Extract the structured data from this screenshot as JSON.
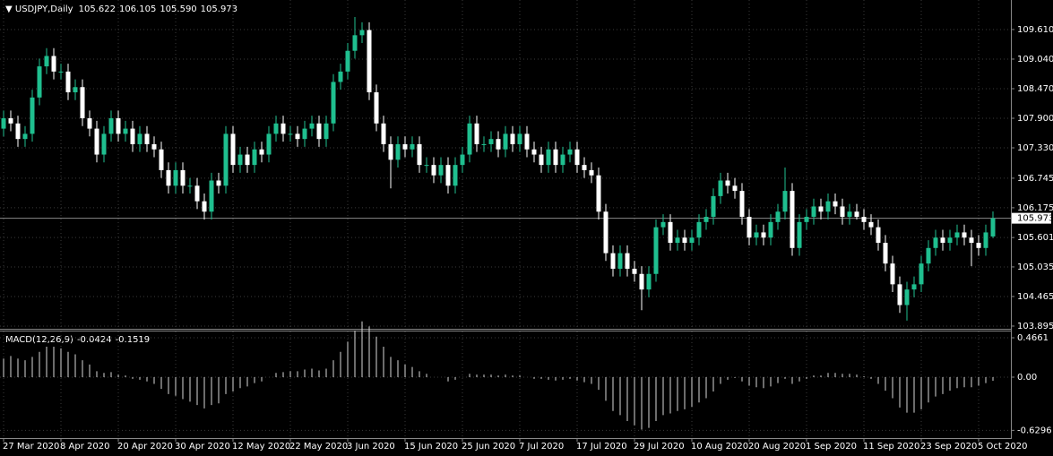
{
  "chart_data": {
    "type": "candlestick",
    "symbol": "USDJPY,Daily",
    "ohlc_labels": [
      "105.622",
      "106.105",
      "105.590",
      "105.973"
    ],
    "bull_color": "#1fbf8f",
    "bear_color": "#ffffff",
    "grid": true,
    "ylim": [
      103.86,
      110.11
    ],
    "yticks": [
      {
        "value": 109.61,
        "label": "109.610"
      },
      {
        "value": 109.04,
        "label": "109.040"
      },
      {
        "value": 108.47,
        "label": "108.470"
      },
      {
        "value": 107.9,
        "label": "107.900"
      },
      {
        "value": 107.33,
        "label": "107.330"
      },
      {
        "value": 106.745,
        "label": "106.745"
      },
      {
        "value": 106.175,
        "label": "106.175"
      },
      {
        "value": 105.601,
        "label": "105.601"
      },
      {
        "value": 105.035,
        "label": "105.035"
      },
      {
        "value": 104.465,
        "label": "104.465"
      },
      {
        "value": 103.895,
        "label": "103.895"
      }
    ],
    "categories": [
      "27 Mar 2020",
      null,
      null,
      null,
      null,
      null,
      null,
      null,
      "8 Apr 2020",
      null,
      null,
      null,
      null,
      null,
      null,
      null,
      "20 Apr 2020",
      null,
      null,
      null,
      null,
      null,
      null,
      null,
      "30 Apr 2020",
      null,
      null,
      null,
      null,
      null,
      null,
      null,
      "12 May 2020",
      null,
      null,
      null,
      null,
      null,
      null,
      null,
      "22 May 2020",
      null,
      null,
      null,
      null,
      null,
      null,
      null,
      "3 Jun 2020",
      null,
      null,
      null,
      null,
      null,
      null,
      null,
      "15 Jun 2020",
      null,
      null,
      null,
      null,
      null,
      null,
      null,
      "25 Jun 2020",
      null,
      null,
      null,
      null,
      null,
      null,
      null,
      "7 Jul 2020",
      null,
      null,
      null,
      null,
      null,
      null,
      null,
      "17 Jul 2020",
      null,
      null,
      null,
      null,
      null,
      null,
      null,
      "29 Jul 2020",
      null,
      null,
      null,
      null,
      null,
      null,
      null,
      "10 Aug 2020",
      null,
      null,
      null,
      null,
      null,
      null,
      null,
      "20 Aug 2020",
      null,
      null,
      null,
      null,
      null,
      null,
      null,
      "1 Sep 2020",
      null,
      null,
      null,
      null,
      null,
      null,
      null,
      "11 Sep 2020",
      null,
      null,
      null,
      null,
      null,
      null,
      null,
      "23 Sep 2020",
      null,
      null,
      null,
      null,
      null,
      null,
      null,
      "5 Oct 2020",
      null,
      null
    ],
    "ohlc": [
      [
        107.7,
        108.05,
        107.55,
        107.9
      ],
      [
        107.9,
        108.05,
        107.65,
        107.8
      ],
      [
        107.8,
        107.95,
        107.35,
        107.5
      ],
      [
        107.5,
        107.75,
        107.35,
        107.6
      ],
      [
        107.6,
        108.45,
        107.45,
        108.3
      ],
      [
        108.3,
        109.05,
        108.15,
        108.9
      ],
      [
        108.9,
        109.25,
        108.75,
        109.1
      ],
      [
        109.1,
        109.25,
        108.65,
        108.8
      ],
      [
        108.8,
        108.95,
        108.65,
        108.8
      ],
      [
        108.8,
        108.95,
        108.25,
        108.4
      ],
      [
        108.4,
        108.65,
        108.25,
        108.5
      ],
      [
        108.5,
        108.65,
        107.75,
        107.9
      ],
      [
        107.9,
        108.05,
        107.55,
        107.7
      ],
      [
        107.7,
        107.85,
        107.05,
        107.2
      ],
      [
        107.2,
        107.75,
        107.05,
        107.6
      ],
      [
        107.6,
        108.05,
        107.45,
        107.9
      ],
      [
        107.9,
        108.05,
        107.45,
        107.6
      ],
      [
        107.6,
        107.85,
        107.45,
        107.7
      ],
      [
        107.7,
        107.85,
        107.25,
        107.4
      ],
      [
        107.4,
        107.75,
        107.25,
        107.6
      ],
      [
        107.6,
        107.75,
        107.25,
        107.4
      ],
      [
        107.4,
        107.55,
        107.15,
        107.3
      ],
      [
        107.3,
        107.45,
        106.75,
        106.9
      ],
      [
        106.9,
        107.05,
        106.45,
        106.6
      ],
      [
        106.6,
        107.05,
        106.45,
        106.9
      ],
      [
        106.9,
        107.05,
        106.45,
        106.6
      ],
      [
        106.6,
        106.75,
        106.45,
        106.6
      ],
      [
        106.6,
        106.75,
        106.15,
        106.3
      ],
      [
        106.3,
        106.45,
        105.95,
        106.1
      ],
      [
        106.1,
        106.85,
        105.95,
        106.7
      ],
      [
        106.7,
        106.85,
        106.45,
        106.6
      ],
      [
        106.6,
        107.75,
        106.45,
        107.6
      ],
      [
        107.6,
        107.75,
        106.85,
        107.0
      ],
      [
        107.0,
        107.35,
        106.85,
        107.2
      ],
      [
        107.2,
        107.35,
        106.85,
        107.0
      ],
      [
        107.0,
        107.45,
        106.85,
        107.3
      ],
      [
        107.3,
        107.45,
        107.05,
        107.2
      ],
      [
        107.2,
        107.75,
        107.05,
        107.6
      ],
      [
        107.6,
        107.95,
        107.45,
        107.8
      ],
      [
        107.8,
        107.95,
        107.45,
        107.6
      ],
      [
        107.6,
        107.75,
        107.45,
        107.6
      ],
      [
        107.6,
        107.75,
        107.35,
        107.5
      ],
      [
        107.5,
        107.85,
        107.35,
        107.7
      ],
      [
        107.7,
        107.95,
        107.55,
        107.8
      ],
      [
        107.8,
        107.95,
        107.35,
        107.5
      ],
      [
        107.5,
        107.95,
        107.35,
        107.8
      ],
      [
        107.8,
        108.75,
        107.65,
        108.6
      ],
      [
        108.6,
        108.95,
        108.45,
        108.8
      ],
      [
        108.8,
        109.35,
        108.65,
        109.2
      ],
      [
        109.2,
        109.85,
        109.05,
        109.5
      ],
      [
        109.5,
        109.75,
        109.35,
        109.6
      ],
      [
        109.6,
        109.75,
        108.25,
        108.4
      ],
      [
        108.4,
        108.55,
        107.65,
        107.8
      ],
      [
        107.8,
        107.95,
        107.25,
        107.4
      ],
      [
        107.4,
        107.55,
        106.55,
        107.1
      ],
      [
        107.1,
        107.55,
        106.95,
        107.4
      ],
      [
        107.4,
        107.55,
        107.15,
        107.3
      ],
      [
        107.3,
        107.55,
        107.15,
        107.4
      ],
      [
        107.4,
        107.55,
        106.85,
        107.0
      ],
      [
        107.0,
        107.15,
        106.85,
        107.0
      ],
      [
        107.0,
        107.15,
        106.65,
        106.8
      ],
      [
        106.8,
        107.15,
        106.65,
        107.0
      ],
      [
        107.0,
        107.15,
        106.45,
        106.6
      ],
      [
        106.6,
        107.15,
        106.45,
        107.0
      ],
      [
        107.0,
        107.35,
        106.85,
        107.2
      ],
      [
        107.2,
        107.95,
        107.05,
        107.8
      ],
      [
        107.8,
        107.95,
        107.25,
        107.4
      ],
      [
        107.4,
        107.55,
        107.25,
        107.4
      ],
      [
        107.4,
        107.65,
        107.25,
        107.5
      ],
      [
        107.5,
        107.65,
        107.15,
        107.3
      ],
      [
        107.3,
        107.75,
        107.15,
        107.6
      ],
      [
        107.6,
        107.75,
        107.25,
        107.4
      ],
      [
        107.4,
        107.75,
        107.25,
        107.6
      ],
      [
        107.6,
        107.75,
        107.15,
        107.3
      ],
      [
        107.3,
        107.45,
        107.05,
        107.2
      ],
      [
        107.2,
        107.35,
        106.85,
        107.0
      ],
      [
        107.0,
        107.45,
        106.85,
        107.3
      ],
      [
        107.3,
        107.45,
        106.85,
        107.0
      ],
      [
        107.0,
        107.35,
        106.85,
        107.2
      ],
      [
        107.2,
        107.45,
        107.05,
        107.3
      ],
      [
        107.3,
        107.45,
        106.85,
        107.0
      ],
      [
        107.0,
        107.15,
        106.75,
        106.9
      ],
      [
        106.9,
        107.05,
        106.65,
        106.8
      ],
      [
        106.8,
        106.95,
        105.95,
        106.1
      ],
      [
        106.1,
        106.25,
        105.15,
        105.3
      ],
      [
        105.3,
        105.45,
        104.85,
        105.0
      ],
      [
        105.0,
        105.45,
        104.85,
        105.3
      ],
      [
        105.3,
        105.45,
        104.85,
        105.0
      ],
      [
        105.0,
        105.15,
        104.75,
        104.9
      ],
      [
        104.9,
        105.05,
        104.2,
        104.6
      ],
      [
        104.6,
        105.05,
        104.45,
        104.9
      ],
      [
        104.9,
        105.95,
        104.75,
        105.8
      ],
      [
        105.8,
        106.05,
        105.65,
        105.9
      ],
      [
        105.9,
        106.05,
        105.35,
        105.5
      ],
      [
        105.5,
        105.75,
        105.35,
        105.6
      ],
      [
        105.6,
        105.75,
        105.35,
        105.5
      ],
      [
        105.5,
        105.75,
        105.35,
        105.6
      ],
      [
        105.6,
        106.05,
        105.45,
        105.9
      ],
      [
        105.9,
        106.15,
        105.75,
        106.0
      ],
      [
        106.0,
        106.55,
        105.85,
        106.4
      ],
      [
        106.4,
        106.85,
        106.25,
        106.7
      ],
      [
        106.7,
        106.85,
        106.45,
        106.6
      ],
      [
        106.6,
        106.75,
        106.35,
        106.5
      ],
      [
        106.5,
        106.65,
        105.85,
        106.0
      ],
      [
        106.0,
        106.15,
        105.45,
        105.6
      ],
      [
        105.6,
        105.85,
        105.45,
        105.7
      ],
      [
        105.7,
        105.85,
        105.45,
        105.6
      ],
      [
        105.6,
        106.05,
        105.45,
        105.9
      ],
      [
        105.9,
        106.25,
        105.75,
        106.1
      ],
      [
        106.1,
        106.95,
        105.95,
        106.5
      ],
      [
        106.5,
        106.65,
        105.25,
        105.4
      ],
      [
        105.4,
        106.05,
        105.25,
        105.9
      ],
      [
        105.9,
        106.15,
        105.75,
        106.0
      ],
      [
        106.0,
        106.35,
        105.85,
        106.2
      ],
      [
        106.2,
        106.35,
        105.95,
        106.1
      ],
      [
        106.1,
        106.45,
        105.95,
        106.3
      ],
      [
        106.3,
        106.45,
        106.05,
        106.2
      ],
      [
        106.2,
        106.35,
        105.85,
        106.0
      ],
      [
        106.0,
        106.25,
        105.85,
        106.1
      ],
      [
        106.1,
        106.25,
        105.95,
        106.0
      ],
      [
        106.0,
        106.15,
        105.75,
        105.9
      ],
      [
        105.9,
        106.05,
        105.65,
        105.8
      ],
      [
        105.8,
        105.95,
        105.35,
        105.5
      ],
      [
        105.5,
        105.65,
        104.95,
        105.1
      ],
      [
        105.1,
        105.25,
        104.55,
        104.7
      ],
      [
        104.7,
        104.85,
        104.15,
        104.3
      ],
      [
        104.3,
        104.75,
        104.0,
        104.6
      ],
      [
        104.6,
        104.85,
        104.45,
        104.7
      ],
      [
        104.7,
        105.25,
        104.55,
        105.1
      ],
      [
        105.1,
        105.55,
        104.95,
        105.4
      ],
      [
        105.4,
        105.75,
        105.25,
        105.6
      ],
      [
        105.6,
        105.75,
        105.35,
        105.5
      ],
      [
        105.5,
        105.75,
        105.35,
        105.6
      ],
      [
        105.6,
        105.85,
        105.45,
        105.7
      ],
      [
        105.7,
        105.85,
        105.45,
        105.6
      ],
      [
        105.6,
        105.75,
        105.05,
        105.5
      ],
      [
        105.5,
        105.65,
        105.25,
        105.4
      ],
      [
        105.4,
        105.85,
        105.25,
        105.7
      ],
      [
        105.622,
        106.105,
        105.59,
        105.973
      ]
    ],
    "macd_title": "MACD(12,26,9)",
    "macd_signal_last": -0.1519,
    "macd_color": "#d8d8d8",
    "macd_ylim": [
      -0.7,
      0.53
    ],
    "macd_yticks": [
      0.4661,
      {
        "value": 0,
        "label": "0.00"
      },
      -0.6296
    ],
    "macd": [
      0.22,
      0.25,
      0.22,
      0.2,
      0.24,
      0.3,
      0.36,
      0.36,
      0.34,
      0.3,
      0.27,
      0.2,
      0.15,
      0.07,
      0.05,
      0.06,
      0.03,
      0.02,
      -0.02,
      -0.03,
      -0.05,
      -0.08,
      -0.14,
      -0.2,
      -0.22,
      -0.26,
      -0.29,
      -0.33,
      -0.37,
      -0.33,
      -0.31,
      -0.2,
      -0.17,
      -0.13,
      -0.11,
      -0.07,
      -0.05,
      0.0,
      0.05,
      0.06,
      0.07,
      0.07,
      0.09,
      0.1,
      0.08,
      0.1,
      0.2,
      0.3,
      0.42,
      0.55,
      0.66,
      0.6,
      0.48,
      0.36,
      0.24,
      0.2,
      0.15,
      0.12,
      0.07,
      0.04,
      0.0,
      0.0,
      -0.05,
      -0.03,
      0.0,
      0.04,
      0.03,
      0.03,
      0.03,
      0.02,
      0.03,
      0.02,
      0.02,
      0.0,
      -0.02,
      -0.02,
      -0.03,
      -0.04,
      -0.03,
      -0.02,
      -0.04,
      -0.06,
      -0.08,
      -0.15,
      -0.28,
      -0.4,
      -0.45,
      -0.52,
      -0.57,
      -0.62,
      -0.6,
      -0.52,
      -0.45,
      -0.43,
      -0.4,
      -0.38,
      -0.35,
      -0.3,
      -0.25,
      -0.17,
      -0.08,
      -0.03,
      -0.01,
      -0.05,
      -0.1,
      -0.12,
      -0.13,
      -0.11,
      -0.07,
      -0.02,
      -0.08,
      -0.05,
      -0.02,
      0.02,
      0.02,
      0.05,
      0.05,
      0.04,
      0.04,
      0.03,
      0.01,
      -0.02,
      -0.08,
      -0.16,
      -0.25,
      -0.36,
      -0.42,
      -0.42,
      -0.38,
      -0.3,
      -0.23,
      -0.2,
      -0.16,
      -0.13,
      -0.12,
      -0.12,
      -0.1,
      -0.07,
      -0.0424
    ]
  }
}
